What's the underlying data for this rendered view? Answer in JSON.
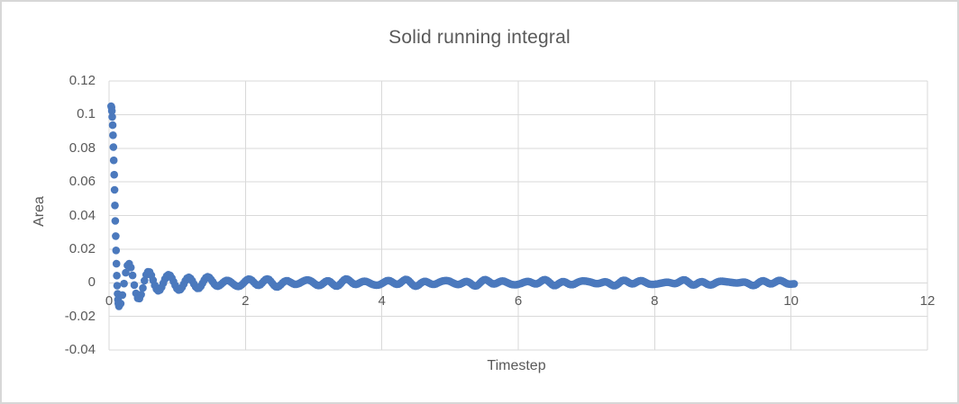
{
  "figure": {
    "background": "#ffffff",
    "border_color": "#d7d7d7"
  },
  "chart_data": {
    "type": "scatter",
    "title": "Solid running integral",
    "xlabel": "Timestep",
    "ylabel": "Area",
    "xlim": [
      0,
      12
    ],
    "ylim": [
      -0.04,
      0.12
    ],
    "x_tick_labels": [
      "0",
      "2",
      "4",
      "6",
      "8",
      "10",
      "12"
    ],
    "x_tick_values": [
      0,
      2,
      4,
      6,
      8,
      10,
      12
    ],
    "y_tick_labels": [
      "0.12",
      "0.1",
      "0.08",
      "0.06",
      "0.04",
      "0.02",
      "0",
      "-0.02",
      "-0.04"
    ],
    "y_tick_values": [
      0.12,
      0.1,
      0.08,
      0.06,
      0.04,
      0.02,
      0,
      -0.02,
      -0.04
    ],
    "grid": true,
    "legend": "none",
    "marker_color": "#4b79bd",
    "marker_radius_px": 4.3,
    "gridline_color": "#d9d9d9",
    "axis_line_color": "#d9d9d9",
    "text_color": "#595959",
    "series": [
      {
        "name": "Solid running integral",
        "description": "Dense cloud of round markers: running integral spikes to ~0.105 near t=0.05, plunges to ~-0.014 by t~0.15, rebounds to ~+0.013 at t~0.3, then damped oscillation settling into a narrow band around 0 (~±0.001) out to t=10.",
        "sample_points": [
          [
            0.05,
            0.105
          ],
          [
            0.07,
            0.09
          ],
          [
            0.09,
            0.065
          ],
          [
            0.11,
            0.035
          ],
          [
            0.13,
            0.01
          ],
          [
            0.15,
            -0.014
          ],
          [
            0.22,
            0.0
          ],
          [
            0.29,
            0.013
          ],
          [
            0.36,
            0.0
          ],
          [
            0.44,
            -0.009
          ],
          [
            0.58,
            0.007
          ],
          [
            0.72,
            -0.005
          ],
          [
            0.88,
            0.004
          ],
          [
            1.0,
            0.004
          ],
          [
            1.3,
            -0.003
          ],
          [
            1.6,
            0.003
          ],
          [
            2.0,
            0.002
          ],
          [
            2.5,
            -0.002
          ],
          [
            3.0,
            0.002
          ],
          [
            3.5,
            0.001
          ],
          [
            4.0,
            0.001
          ],
          [
            4.5,
            0.002
          ],
          [
            5.0,
            0.002
          ],
          [
            5.5,
            -0.001
          ],
          [
            6.0,
            0.001
          ],
          [
            6.5,
            0.002
          ],
          [
            7.0,
            0.001
          ],
          [
            7.5,
            0.002
          ],
          [
            8.0,
            0.001
          ],
          [
            8.5,
            0.002
          ],
          [
            9.0,
            0.001
          ],
          [
            9.5,
            0.002
          ],
          [
            10.0,
            0.001
          ]
        ],
        "generator": {
          "phase1": {
            "x0": 0.03,
            "dx": 0.0056,
            "n": 21,
            "mid": 0.046,
            "amp": 0.059,
            "span": 0.112
          },
          "phase2": {
            "x0": 0.145,
            "dx": 0.025,
            "n": 397,
            "x_ref": 0.15,
            "period": 0.29,
            "env_a1": 0.012,
            "env_tau1": 0.5,
            "env_a2": 0.0017,
            "env_tau2": 5.5,
            "env_floor": 0.00045,
            "noise_a1": 0.0006,
            "noise_f1": 9.1,
            "noise_p1": 0.7,
            "noise_a2": 0.00045,
            "noise_f2": 27.7,
            "noise_p2": 0.0
          }
        }
      }
    ]
  }
}
